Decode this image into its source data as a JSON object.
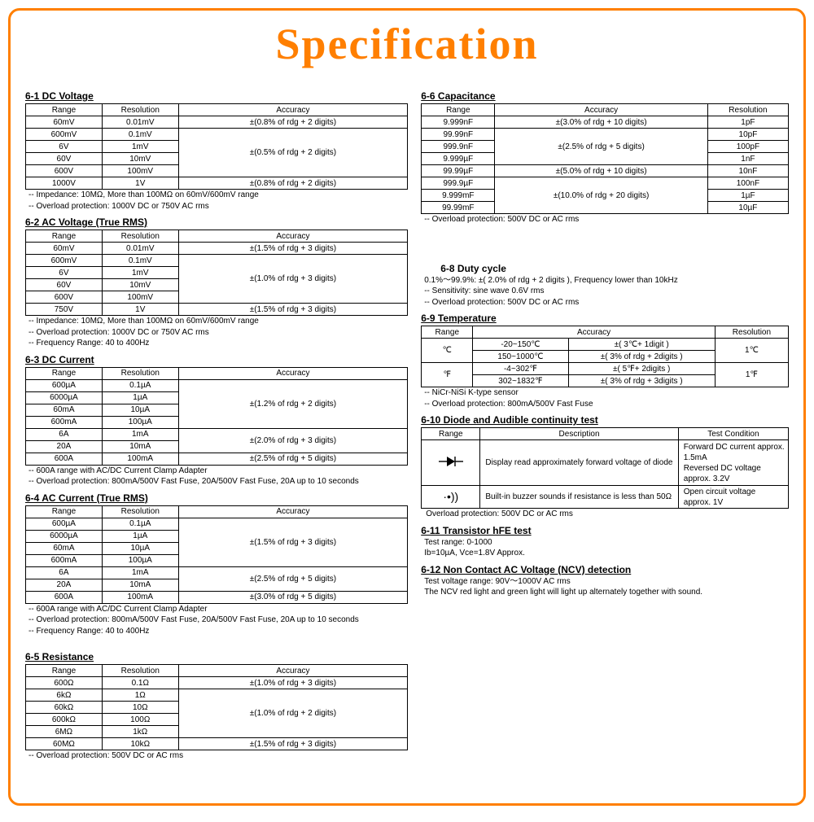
{
  "page": {
    "title": "Specification",
    "border_color": "#ff7f00",
    "title_color": "#ff7f00",
    "bg": "#ffffff",
    "table_border": "#000000"
  },
  "s61": {
    "heading": "6-1 DC Voltage",
    "cols": [
      "Range",
      "Resolution",
      "Accuracy"
    ],
    "rows": [
      [
        "60mV",
        "0.01mV",
        "±(0.8% of rdg + 2 digits)"
      ],
      [
        "600mV",
        "0.1mV",
        ""
      ],
      [
        "6V",
        "1mV",
        ""
      ],
      [
        "60V",
        "10mV",
        ""
      ],
      [
        "600V",
        "100mV",
        ""
      ],
      [
        "1000V",
        "1V",
        "±(0.8% of rdg + 2 digits)"
      ]
    ],
    "acc_group": "±(0.5% of rdg + 2 digits)",
    "notes": [
      "-- Impedance: 10MΩ, More than 100MΩ on 60mV/600mV range",
      "-- Overload protection: 1000V DC or 750V AC rms"
    ]
  },
  "s62": {
    "heading": "6-2 AC Voltage (True RMS)",
    "cols": [
      "Range",
      "Resolution",
      "Accuracy"
    ],
    "rows": [
      [
        "60mV",
        "0.01mV",
        "±(1.5% of rdg + 3 digits)"
      ],
      [
        "600mV",
        "0.1mV",
        ""
      ],
      [
        "6V",
        "1mV",
        ""
      ],
      [
        "60V",
        "10mV",
        ""
      ],
      [
        "600V",
        "100mV",
        ""
      ],
      [
        "750V",
        "1V",
        "±(1.5% of rdg + 3 digits)"
      ]
    ],
    "acc_group": "±(1.0% of rdg + 3 digits)",
    "notes": [
      "-- Impedance: 10MΩ, More than 100MΩ on 60mV/600mV range",
      "-- Overload protection: 1000V DC or 750V AC rms",
      "-- Frequency Range: 40 to 400Hz"
    ]
  },
  "s63": {
    "heading": "6-3 DC Current",
    "cols": [
      "Range",
      "Resolution",
      "Accuracy"
    ],
    "rows": [
      [
        "600µA",
        "0.1µA",
        ""
      ],
      [
        "6000µA",
        "1µA",
        ""
      ],
      [
        "60mA",
        "10µA",
        ""
      ],
      [
        "600mA",
        "100µA",
        ""
      ],
      [
        "6A",
        "1mA",
        ""
      ],
      [
        "20A",
        "10mA",
        ""
      ],
      [
        "600A",
        "100mA",
        "±(2.5% of rdg + 5 digits)"
      ]
    ],
    "acc_g1": "±(1.2% of rdg + 2 digits)",
    "acc_g2": "±(2.0% of rdg + 3 digits)",
    "notes": [
      "-- 600A range with AC/DC Current Clamp Adapter",
      "-- Overload protection: 800mA/500V Fast Fuse, 20A/500V Fast Fuse, 20A up to 10 seconds"
    ]
  },
  "s64": {
    "heading": "6-4 AC Current (True RMS)",
    "cols": [
      "Range",
      "Resolution",
      "Accuracy"
    ],
    "rows": [
      [
        "600µA",
        "0.1µA",
        ""
      ],
      [
        "6000µA",
        "1µA",
        ""
      ],
      [
        "60mA",
        "10µA",
        ""
      ],
      [
        "600mA",
        "100µA",
        ""
      ],
      [
        "6A",
        "1mA",
        ""
      ],
      [
        "20A",
        "10mA",
        ""
      ],
      [
        "600A",
        "100mA",
        "±(3.0% of rdg + 5 digits)"
      ]
    ],
    "acc_g1": "±(1.5% of rdg + 3 digits)",
    "acc_g2": "±(2.5% of rdg + 5 digits)",
    "notes": [
      "-- 600A range with AC/DC Current Clamp Adapter",
      "-- Overload protection: 800mA/500V Fast Fuse, 20A/500V Fast Fuse, 20A up to 10 seconds",
      "-- Frequency Range: 40 to 400Hz"
    ]
  },
  "s65": {
    "heading": "6-5 Resistance",
    "cols": [
      "Range",
      "Resolution",
      "Accuracy"
    ],
    "rows": [
      [
        "600Ω",
        "0.1Ω",
        "±(1.0% of rdg + 3 digits)"
      ],
      [
        "6kΩ",
        "1Ω",
        ""
      ],
      [
        "60kΩ",
        "10Ω",
        ""
      ],
      [
        "600kΩ",
        "100Ω",
        ""
      ],
      [
        "6MΩ",
        "1kΩ",
        ""
      ],
      [
        "60MΩ",
        "10kΩ",
        "±(1.5% of rdg + 3 digits)"
      ]
    ],
    "acc_group": "±(1.0% of rdg + 2 digits)",
    "notes": [
      "-- Overload protection: 500V DC or AC rms"
    ]
  },
  "s66": {
    "heading": "6-6 Capacitance",
    "cols": [
      "Range",
      "Accuracy",
      "Resolution"
    ],
    "rows": [
      [
        "9.999nF",
        "±(3.0% of rdg + 10 digits)",
        "1pF"
      ],
      [
        "99.99nF",
        "",
        "10pF"
      ],
      [
        "999.9nF",
        "",
        "100pF"
      ],
      [
        "9.999µF",
        "",
        "1nF"
      ],
      [
        "99.99µF",
        "±(5.0% of rdg + 10 digits)",
        "10nF"
      ],
      [
        "999.9µF",
        "",
        "100nF"
      ],
      [
        "9.999mF",
        "",
        "1µF"
      ],
      [
        "99.99mF",
        "",
        "10µF"
      ]
    ],
    "acc_g1": "±(2.5% of rdg + 5 digits)",
    "acc_g2": "±(10.0% of rdg + 20 digits)",
    "notes": [
      "-- Overload protection: 500V DC or AC rms"
    ]
  },
  "s68": {
    "heading": "6-8 Duty cycle",
    "line1": "0.1%～99.9%: ±( 2.0% of rdg + 2 digits ), Frequency lower than 10kHz",
    "notes": [
      "-- Sensitivity: sine wave 0.6V rms",
      "-- Overload protection: 500V DC or AC rms"
    ]
  },
  "s69": {
    "heading": "6-9 Temperature",
    "cols": [
      "Range",
      "Accuracy",
      "Resolution"
    ],
    "unitC": "℃",
    "unitF": "℉",
    "rC1": "-20~150℃",
    "rC2": "150~1000℃",
    "aC1": "±( 3℃+ 1digit )",
    "aC2": "±( 3% of rdg + 2digits )",
    "resC": "1℃",
    "rF1": "-4~302℉",
    "rF2": "302~1832℉",
    "aF1": "±( 5℉+ 2digits )",
    "aF2": "±( 3% of rdg + 3digits )",
    "resF": "1℉",
    "notes": [
      "-- NiCr-NiSi K-type sensor",
      "-- Overload protection: 800mA/500V Fast Fuse"
    ]
  },
  "s610": {
    "heading": "6-10 Diode and Audible continuity test",
    "cols": [
      "Range",
      "Description",
      "Test Condition"
    ],
    "diode_sym": "▸▎",
    "diode_desc": "Display read approximately forward voltage of diode",
    "diode_cond": "Forward DC current approx. 1.5mA\nReversed DC voltage approx. 3.2V",
    "buzz_sym": "·•))",
    "buzz_desc": "Built-in buzzer sounds if resistance is less than 50Ω",
    "buzz_cond": "Open circuit voltage approx. 1V",
    "note": "Overload protection: 500V DC or AC rms"
  },
  "s611": {
    "heading": "6-11 Transistor hFE test",
    "l1": "Test range: 0-1000",
    "l2": "Ib=10µA, Vce=1.8V Approx."
  },
  "s612": {
    "heading": "6-12 Non Contact AC Voltage (NCV) detection",
    "l1": "Test voltage range: 90V～1000V AC rms",
    "l2": "The NCV red light and green light will light up alternately together with sound."
  }
}
